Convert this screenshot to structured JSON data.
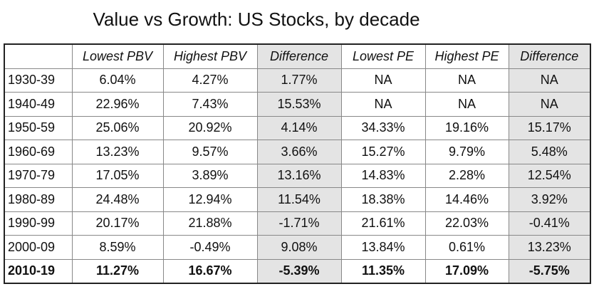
{
  "header": {
    "title": "Value vs Growth: US Stocks, by decade"
  },
  "table": {
    "columns": [
      "Lowest PBV",
      "Highest PBV",
      "Difference",
      "Lowest PE",
      "Highest PE",
      "Difference"
    ],
    "rows": [
      [
        "1930-39",
        "6.04%",
        "4.27%",
        "1.77%",
        "NA",
        "NA",
        "NA"
      ],
      [
        "1940-49",
        "22.96%",
        "7.43%",
        "15.53%",
        "NA",
        "NA",
        "NA"
      ],
      [
        "1950-59",
        "25.06%",
        "20.92%",
        "4.14%",
        "34.33%",
        "19.16%",
        "15.17%"
      ],
      [
        "1960-69",
        "13.23%",
        "9.57%",
        "3.66%",
        "15.27%",
        "9.79%",
        "5.48%"
      ],
      [
        "1970-79",
        "17.05%",
        "3.89%",
        "13.16%",
        "14.83%",
        "2.28%",
        "12.54%"
      ],
      [
        "1980-89",
        "24.48%",
        "12.94%",
        "11.54%",
        "18.38%",
        "14.46%",
        "3.92%"
      ],
      [
        "1990-99",
        "20.17%",
        "21.88%",
        "-1.71%",
        "21.61%",
        "22.03%",
        "-0.41%"
      ],
      [
        "2000-09",
        "8.59%",
        "-0.49%",
        "9.08%",
        "13.84%",
        "0.61%",
        "13.23%"
      ],
      [
        "2010-19",
        "11.27%",
        "16.67%",
        "-5.39%",
        "11.35%",
        "17.09%",
        "-5.75%"
      ]
    ]
  }
}
